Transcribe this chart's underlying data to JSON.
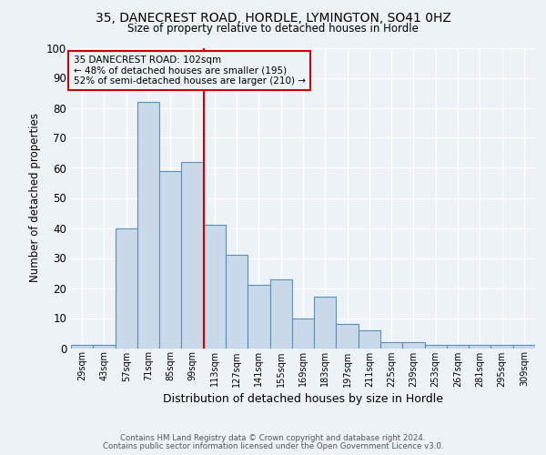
{
  "title1": "35, DANECREST ROAD, HORDLE, LYMINGTON, SO41 0HZ",
  "title2": "Size of property relative to detached houses in Hordle",
  "xlabel": "Distribution of detached houses by size in Hordle",
  "ylabel": "Number of detached properties",
  "bins": [
    "29sqm",
    "43sqm",
    "57sqm",
    "71sqm",
    "85sqm",
    "99sqm",
    "113sqm",
    "127sqm",
    "141sqm",
    "155sqm",
    "169sqm",
    "183sqm",
    "197sqm",
    "211sqm",
    "225sqm",
    "239sqm",
    "253sqm",
    "267sqm",
    "281sqm",
    "295sqm",
    "309sqm"
  ],
  "values": [
    1,
    1,
    40,
    82,
    59,
    62,
    41,
    31,
    21,
    23,
    10,
    17,
    8,
    6,
    2,
    2,
    1,
    1,
    1,
    1,
    1
  ],
  "bar_color": "#c9d9ea",
  "bar_edge_color": "#5a8fba",
  "vline_x": 5.5,
  "vline_color": "#cc0000",
  "annotation_title": "35 DANECREST ROAD: 102sqm",
  "annotation_line2": "← 48% of detached houses are smaller (195)",
  "annotation_line3": "52% of semi-detached houses are larger (210) →",
  "annotation_box_color": "#cc0000",
  "ylim": [
    0,
    100
  ],
  "footnote1": "Contains HM Land Registry data © Crown copyright and database right 2024.",
  "footnote2": "Contains public sector information licensed under the Open Government Licence v3.0.",
  "background_color": "#edf2f7"
}
